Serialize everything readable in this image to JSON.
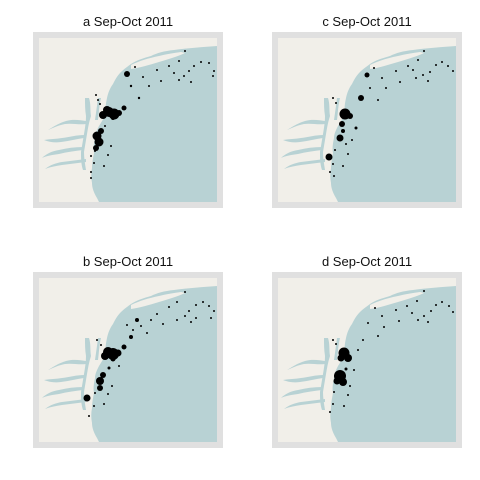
{
  "colors": {
    "ocean": "#b8d2d4",
    "land": "#f1efe9",
    "frame": "#e0e0e0",
    "points": "#000000",
    "background": "#ffffff"
  },
  "panels": [
    {
      "id": "a",
      "title": "a Sep-Oct 2011"
    },
    {
      "id": "c",
      "title": "c Sep-Oct 2011"
    },
    {
      "id": "b",
      "title": "b Sep-Oct 2011"
    },
    {
      "id": "d",
      "title": "d Sep-Oct 2011"
    }
  ]
}
